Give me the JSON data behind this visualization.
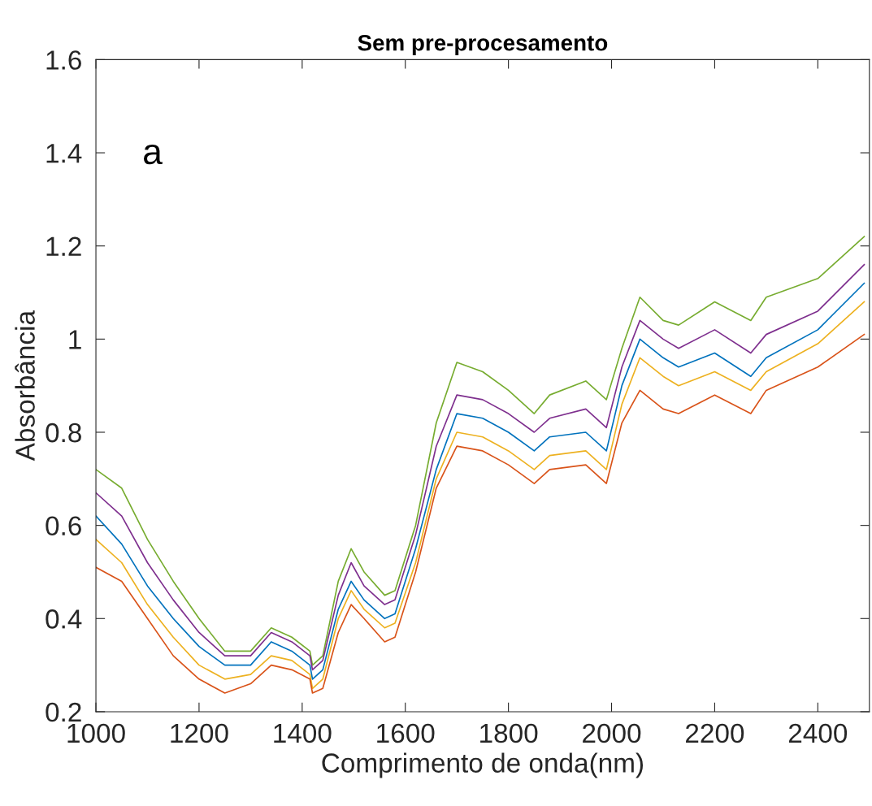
{
  "chart_data": {
    "type": "line",
    "title": "Sem pre-procesamento",
    "xlabel": "Comprimento de onda(nm)",
    "ylabel": "Absorbância",
    "annotations": [
      "a"
    ],
    "x": [
      1000,
      1050,
      1100,
      1150,
      1200,
      1250,
      1300,
      1340,
      1380,
      1415,
      1420,
      1440,
      1470,
      1495,
      1520,
      1560,
      1580,
      1620,
      1660,
      1700,
      1750,
      1800,
      1850,
      1880,
      1950,
      1990,
      2020,
      2055,
      2100,
      2130,
      2200,
      2270,
      2300,
      2400,
      2490
    ],
    "series": [
      {
        "color": "#77ac30",
        "values": [
          0.72,
          0.68,
          0.57,
          0.48,
          0.4,
          0.33,
          0.33,
          0.38,
          0.36,
          0.33,
          0.3,
          0.32,
          0.48,
          0.55,
          0.5,
          0.45,
          0.46,
          0.6,
          0.82,
          0.95,
          0.93,
          0.89,
          0.84,
          0.88,
          0.91,
          0.87,
          0.98,
          1.09,
          1.04,
          1.03,
          1.08,
          1.04,
          1.09,
          1.13,
          1.22
        ]
      },
      {
        "color": "#7e2f8e",
        "values": [
          0.67,
          0.62,
          0.52,
          0.44,
          0.37,
          0.32,
          0.32,
          0.37,
          0.35,
          0.32,
          0.29,
          0.31,
          0.45,
          0.52,
          0.47,
          0.43,
          0.44,
          0.58,
          0.77,
          0.88,
          0.87,
          0.84,
          0.8,
          0.83,
          0.85,
          0.81,
          0.94,
          1.04,
          1.0,
          0.98,
          1.02,
          0.97,
          1.01,
          1.06,
          1.16
        ]
      },
      {
        "color": "#0072bd",
        "values": [
          0.62,
          0.56,
          0.47,
          0.4,
          0.34,
          0.3,
          0.3,
          0.35,
          0.33,
          0.3,
          0.27,
          0.29,
          0.42,
          0.48,
          0.44,
          0.4,
          0.41,
          0.55,
          0.72,
          0.84,
          0.83,
          0.8,
          0.76,
          0.79,
          0.8,
          0.76,
          0.9,
          1.0,
          0.96,
          0.94,
          0.97,
          0.92,
          0.96,
          1.02,
          1.12
        ]
      },
      {
        "color": "#edb120",
        "values": [
          0.57,
          0.52,
          0.43,
          0.36,
          0.3,
          0.27,
          0.28,
          0.32,
          0.31,
          0.28,
          0.25,
          0.27,
          0.4,
          0.46,
          0.42,
          0.38,
          0.39,
          0.52,
          0.7,
          0.8,
          0.79,
          0.76,
          0.72,
          0.75,
          0.76,
          0.72,
          0.86,
          0.96,
          0.92,
          0.9,
          0.93,
          0.89,
          0.93,
          0.99,
          1.08
        ]
      },
      {
        "color": "#d95319",
        "values": [
          0.51,
          0.48,
          0.4,
          0.32,
          0.27,
          0.24,
          0.26,
          0.3,
          0.29,
          0.27,
          0.24,
          0.25,
          0.37,
          0.43,
          0.4,
          0.35,
          0.36,
          0.5,
          0.68,
          0.77,
          0.76,
          0.73,
          0.69,
          0.72,
          0.73,
          0.69,
          0.82,
          0.89,
          0.85,
          0.84,
          0.88,
          0.84,
          0.89,
          0.94,
          1.01
        ]
      }
    ],
    "xlim": [
      1000,
      2500
    ],
    "xticks": [
      1000,
      1200,
      1400,
      1600,
      1800,
      2000,
      2200,
      2400
    ],
    "ylim": [
      0.2,
      1.6
    ],
    "yticks": [
      0.2,
      0.4,
      0.6,
      0.8,
      {
        "value": 1,
        "label": "1"
      },
      1.2,
      1.4,
      1.6
    ],
    "grid": false,
    "marker": "none",
    "line_style": "solid"
  }
}
